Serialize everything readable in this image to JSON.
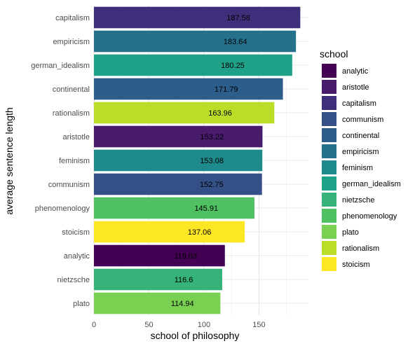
{
  "chart_data": {
    "type": "bar",
    "orientation": "horizontal",
    "categories": [
      "capitalism",
      "empiricism",
      "german_idealism",
      "continental",
      "rationalism",
      "aristotle",
      "feminism",
      "communism",
      "phenomenology",
      "stoicism",
      "analytic",
      "nietzsche",
      "plato"
    ],
    "values": [
      187.58,
      183.64,
      180.25,
      171.79,
      163.96,
      153.22,
      153.08,
      152.75,
      145.91,
      137.06,
      119.03,
      116.6,
      114.94
    ],
    "value_labels": [
      "187.58",
      "183.64",
      "180.25",
      "171.79",
      "163.96",
      "153.22",
      "153.08",
      "152.75",
      "145.91",
      "137.06",
      "119.03",
      "116.6",
      "114.94"
    ],
    "xlabel": "school of philosophy",
    "ylabel": "average sentence length",
    "xlim": [
      0,
      195
    ],
    "xticks": [
      0,
      50,
      100,
      150
    ],
    "grid": true,
    "legend": {
      "title": "school",
      "placement": "right",
      "entries": [
        {
          "name": "analytic",
          "color": "#440154"
        },
        {
          "name": "aristotle",
          "color": "#481B6D"
        },
        {
          "name": "capitalism",
          "color": "#3F2F7A"
        },
        {
          "name": "communism",
          "color": "#355087"
        },
        {
          "name": "continental",
          "color": "#2D5D8B"
        },
        {
          "name": "empiricism",
          "color": "#25718C"
        },
        {
          "name": "feminism",
          "color": "#1F8A8B"
        },
        {
          "name": "german_idealism",
          "color": "#1FA187"
        },
        {
          "name": "nietzsche",
          "color": "#36B378"
        },
        {
          "name": "phenomenology",
          "color": "#4FC163"
        },
        {
          "name": "plato",
          "color": "#7AD151"
        },
        {
          "name": "rationalism",
          "color": "#BADE28"
        },
        {
          "name": "stoicism",
          "color": "#FDE725"
        }
      ]
    }
  }
}
